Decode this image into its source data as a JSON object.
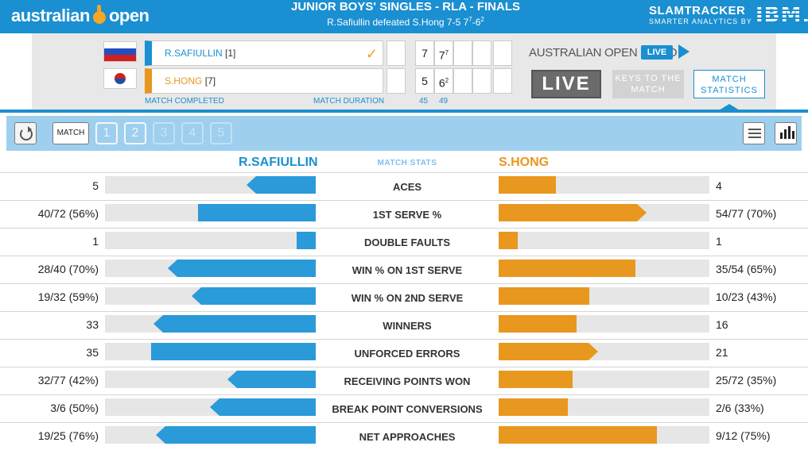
{
  "header": {
    "logo_left": "australian",
    "logo_right": "open",
    "title": "JUNIOR BOYS' SINGLES - RLA - FINALS",
    "result_text": "R.Safiullin defeated S.Hong 7-5 7",
    "result_sup1": "7",
    "result_mid": "-6",
    "result_sup2": "2",
    "slamtracker": "SLAMTRACKER",
    "slamtracker_sub": "SMARTER ANALYTICS BY",
    "ibm": "IBM."
  },
  "scoreboard": {
    "player1": {
      "name": "R.SAFIULLIN",
      "seed": "[1]",
      "flag": "russia-flag",
      "winner": true,
      "sets": [
        "7",
        "7"
      ],
      "tiebreaks": [
        "",
        "7"
      ]
    },
    "player2": {
      "name": "S.HONG",
      "seed": "[7]",
      "flag": "korea-flag",
      "winner": false,
      "sets": [
        "5",
        "6"
      ],
      "tiebreaks": [
        "",
        "2"
      ]
    },
    "status": "MATCH COMPLETED",
    "duration_label": "MATCH DURATION",
    "duration": [
      "45",
      "49"
    ],
    "radio_label": "AUSTRALIAN OPEN RADIO",
    "radio_live": "LIVE",
    "live_button": "LIVE",
    "keys_button": "KEYS TO THE MATCH",
    "stats_button": "MATCH STATISTICS"
  },
  "toolbar": {
    "match_tab": "MATCH",
    "set_tabs": [
      "1",
      "2",
      "3",
      "4",
      "5"
    ],
    "active_sets": 2
  },
  "stats_header": {
    "player1": "R.SAFIULLIN",
    "center": "MATCH STATS",
    "player2": "S.HONG"
  },
  "colors": {
    "player1": "#2a9ad8",
    "player2": "#e8981e",
    "accent": "#1a8fd1"
  },
  "stats": [
    {
      "label": "ACES",
      "p1": "5",
      "p2": "4",
      "p1_level": 0.33,
      "p2_level": 0.27,
      "leader": 1
    },
    {
      "label": "1ST SERVE %",
      "p1": "40/72 (56%)",
      "p2": "54/77 (70%)",
      "p1_level": 0.56,
      "p2_level": 0.7,
      "leader": 2
    },
    {
      "label": "DOUBLE FAULTS",
      "p1": "1",
      "p2": "1",
      "p1_level": 0.09,
      "p2_level": 0.09,
      "leader": 0
    },
    {
      "label": "WIN % ON 1ST SERVE",
      "p1": "28/40 (70%)",
      "p2": "35/54 (65%)",
      "p1_level": 0.7,
      "p2_level": 0.65,
      "leader": 1
    },
    {
      "label": "WIN % ON 2ND SERVE",
      "p1": "19/32 (59%)",
      "p2": "10/23 (43%)",
      "p1_level": 0.59,
      "p2_level": 0.43,
      "leader": 1
    },
    {
      "label": "WINNERS",
      "p1": "33",
      "p2": "16",
      "p1_level": 0.77,
      "p2_level": 0.37,
      "leader": 1
    },
    {
      "label": "UNFORCED ERRORS",
      "p1": "35",
      "p2": "21",
      "p1_level": 0.78,
      "p2_level": 0.47,
      "leader": 2
    },
    {
      "label": "RECEIVING POINTS WON",
      "p1": "32/77 (42%)",
      "p2": "25/72 (35%)",
      "p1_level": 0.42,
      "p2_level": 0.35,
      "leader": 1
    },
    {
      "label": "BREAK POINT CONVERSIONS",
      "p1": "3/6 (50%)",
      "p2": "2/6 (33%)",
      "p1_level": 0.5,
      "p2_level": 0.33,
      "leader": 1
    },
    {
      "label": "NET APPROACHES",
      "p1": "19/25 (76%)",
      "p2": "9/12 (75%)",
      "p1_level": 0.76,
      "p2_level": 0.75,
      "leader": 1
    }
  ]
}
